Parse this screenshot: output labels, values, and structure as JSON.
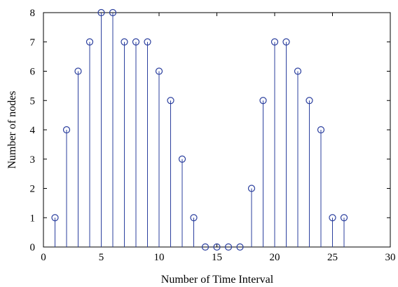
{
  "chart_data": {
    "type": "stem",
    "xlabel": "Number of Time Interval",
    "ylabel": "Number of nodes",
    "xlim": [
      0,
      30
    ],
    "ylim": [
      0,
      8
    ],
    "xticks": [
      0,
      5,
      10,
      15,
      20,
      25,
      30
    ],
    "yticks": [
      0,
      1,
      2,
      3,
      4,
      5,
      6,
      7,
      8
    ],
    "grid": false,
    "legend": "none",
    "series": [
      {
        "x": [
          1,
          2,
          3,
          4,
          5,
          6,
          7,
          8,
          9,
          10,
          11,
          12,
          13,
          14,
          15,
          16,
          17,
          18,
          19,
          20,
          21,
          22,
          23,
          24,
          25,
          26
        ],
        "values": [
          1,
          4,
          6,
          7,
          8,
          8,
          7,
          7,
          7,
          6,
          5,
          3,
          1,
          0,
          0,
          0,
          0,
          2,
          5,
          7,
          7,
          6,
          5,
          4,
          1,
          1
        ],
        "color": "#2b3f9e"
      }
    ]
  }
}
